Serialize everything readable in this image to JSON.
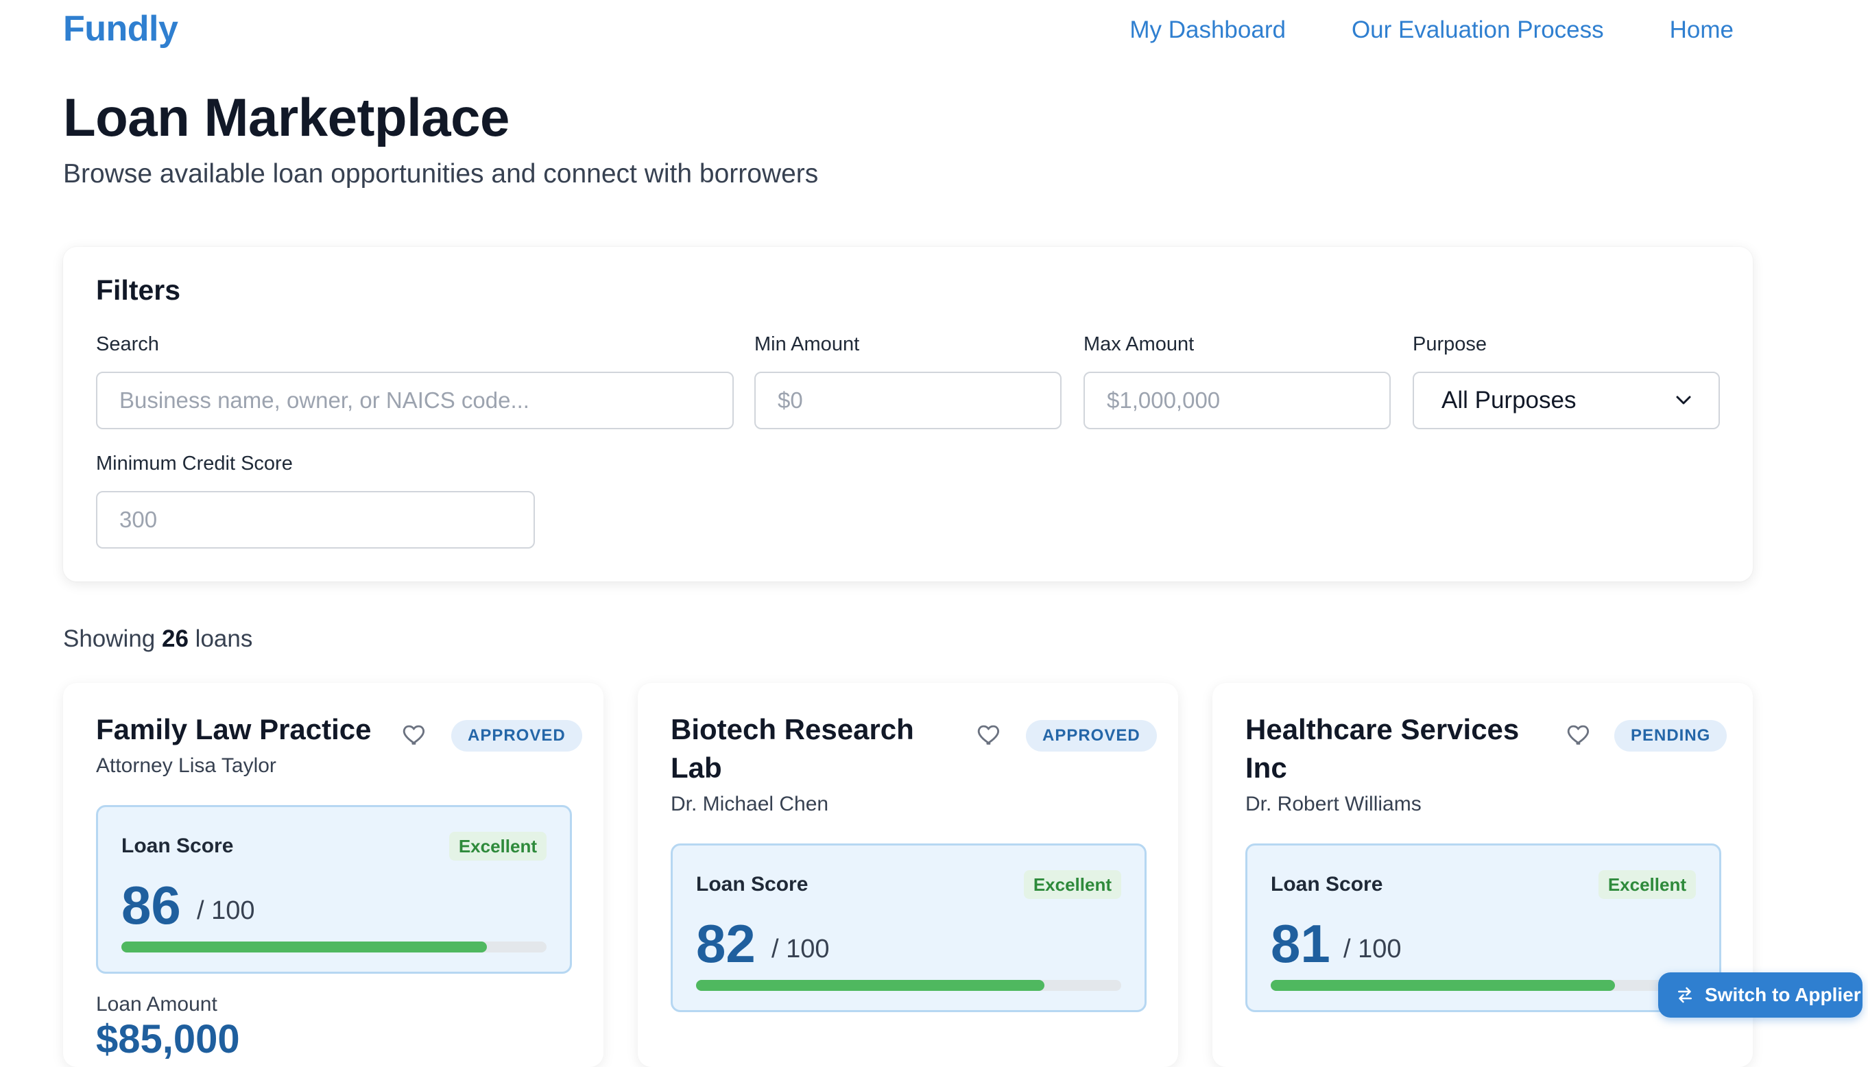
{
  "header": {
    "brand": "Fundly",
    "nav": [
      "My Dashboard",
      "Our Evaluation Process",
      "Home"
    ]
  },
  "page": {
    "title": "Loan Marketplace",
    "subtitle": "Browse available loan opportunities and connect with borrowers"
  },
  "filters": {
    "heading": "Filters",
    "search": {
      "label": "Search",
      "placeholder": "Business name, owner, or NAICS code..."
    },
    "min_amount": {
      "label": "Min Amount",
      "placeholder": "$0"
    },
    "max_amount": {
      "label": "Max Amount",
      "placeholder": "$1,000,000"
    },
    "purpose": {
      "label": "Purpose",
      "value": "All Purposes"
    },
    "min_credit": {
      "label": "Minimum Credit Score",
      "placeholder": "300"
    }
  },
  "results": {
    "prefix": "Showing",
    "count": "26",
    "suffix": "loans"
  },
  "loans": [
    {
      "name": "Family Law Practice",
      "owner": "Attorney Lisa Taylor",
      "status": "APPROVED",
      "score_label": "Loan Score",
      "tier": "Excellent",
      "score": "86",
      "out_of": "/ 100",
      "score_fraction": 0.86,
      "amount_label": "Loan Amount",
      "amount": "$85,000"
    },
    {
      "name": "Biotech Research Lab",
      "owner": "Dr. Michael Chen",
      "status": "APPROVED",
      "score_label": "Loan Score",
      "tier": "Excellent",
      "score": "82",
      "out_of": "/ 100",
      "score_fraction": 0.82
    },
    {
      "name": "Healthcare Services Inc",
      "owner": "Dr. Robert Williams",
      "status": "PENDING",
      "score_label": "Loan Score",
      "tier": "Excellent",
      "score": "81",
      "out_of": "/ 100",
      "score_fraction": 0.81
    }
  ],
  "switch_button": "Switch to Applier",
  "icons": {
    "favorite": "heart-icon",
    "switch": "swap-arrows-icon",
    "select": "chevron-down-icon"
  },
  "colors": {
    "brand": "#2f7fd0",
    "score_bar": "#4fb85f",
    "score_text": "#1f5f9e"
  }
}
